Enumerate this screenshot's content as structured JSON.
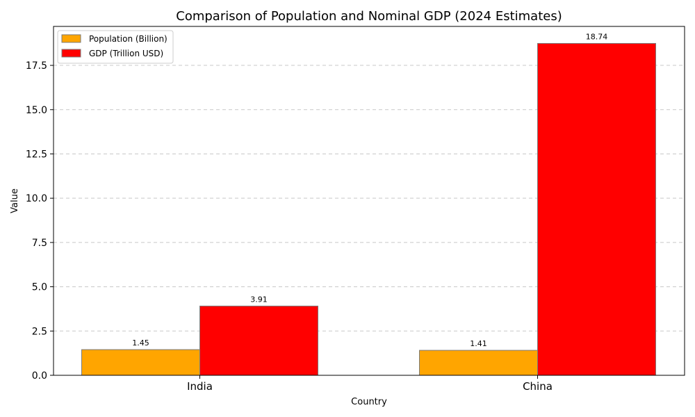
{
  "chart_data": {
    "type": "bar",
    "title": "Comparison of Population and Nominal GDP (2024 Estimates)",
    "xlabel": "Country",
    "ylabel": "Value",
    "categories": [
      "India",
      "China"
    ],
    "series": [
      {
        "name": "Population (Billion)",
        "values": [
          1.45,
          1.41
        ],
        "value_labels": [
          "1.45",
          "1.41"
        ],
        "color": "#FFA500"
      },
      {
        "name": "GDP (Trillion USD)",
        "values": [
          3.91,
          18.74
        ],
        "value_labels": [
          "3.91",
          "18.74"
        ],
        "color": "#FF0000"
      }
    ],
    "ylim": [
      0,
      19.7
    ],
    "yticks": [
      0,
      2.5,
      5,
      7.5,
      10,
      12.5,
      15,
      17.5
    ],
    "ytick_labels": [
      "0.0",
      "2.5",
      "5.0",
      "7.5",
      "10.0",
      "12.5",
      "15.0",
      "17.5"
    ],
    "grid": "y-dashed",
    "legend_position": "top-left"
  }
}
